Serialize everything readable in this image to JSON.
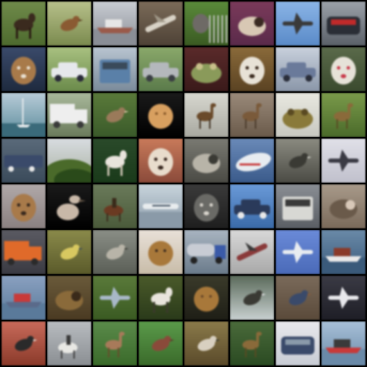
{
  "grid": {
    "rows": 8,
    "cols": 8,
    "tiles": [
      {
        "subject": "horse",
        "bg": [
          "#6f8a4a",
          "#4d6a2e"
        ],
        "fg": "#3a2a1e",
        "accent": "#2a1a12",
        "shape": "quadruped"
      },
      {
        "subject": "bird",
        "bg": [
          "#b7c08a",
          "#7a8a4e"
        ],
        "fg": "#8a5a32",
        "accent": "#5a3a1e",
        "shape": "bird"
      },
      {
        "subject": "ship",
        "bg": [
          "#c8ccd2",
          "#8a8e96"
        ],
        "fg": "#9a5a4a",
        "accent": "#e6e6e6",
        "shape": "ship"
      },
      {
        "subject": "airplane",
        "bg": [
          "#7a6a58",
          "#4e4236"
        ],
        "fg": "#d8d2c6",
        "accent": "#a09888",
        "shape": "plane-diag"
      },
      {
        "subject": "cat",
        "bg": [
          "#5a8a3a",
          "#3a5a22"
        ],
        "fg": "#6e6a66",
        "accent": "#c8c8c8",
        "shape": "animal-fence"
      },
      {
        "subject": "cat",
        "bg": [
          "#7a3a5a",
          "#5a2a4a"
        ],
        "fg": "#d8c8b4",
        "accent": "#3a2a22",
        "shape": "curled"
      },
      {
        "subject": "airplane",
        "bg": [
          "#8ab4e6",
          "#5a8ac8"
        ],
        "fg": "#3a3a3a",
        "accent": "#e6e6e6",
        "shape": "plane"
      },
      {
        "subject": "automobile",
        "bg": [
          "#9aa0a8",
          "#5a6068"
        ],
        "fg": "#2a2e36",
        "accent": "#c02a2a",
        "shape": "car-front"
      },
      {
        "subject": "dog",
        "bg": [
          "#3a4a6a",
          "#1e2a3e"
        ],
        "fg": "#a87a4a",
        "accent": "#e8e0d2",
        "shape": "head"
      },
      {
        "subject": "automobile",
        "bg": [
          "#a8c080",
          "#6a8a4a"
        ],
        "fg": "#e6e8ec",
        "accent": "#2a2a3a",
        "shape": "car-side"
      },
      {
        "subject": "truck",
        "bg": [
          "#b8c4d0",
          "#7a8a9a"
        ],
        "fg": "#5a80a8",
        "accent": "#3a4a5a",
        "shape": "truck-front"
      },
      {
        "subject": "automobile",
        "bg": [
          "#8aa86a",
          "#5a7a4a"
        ],
        "fg": "#b4b8bc",
        "accent": "#3a3e44",
        "shape": "car-side"
      },
      {
        "subject": "frog",
        "bg": [
          "#5a2a2a",
          "#3a1a1a"
        ],
        "fg": "#8a9a5a",
        "accent": "#c8c08a",
        "shape": "frog"
      },
      {
        "subject": "dog",
        "bg": [
          "#8a6a3a",
          "#5a4222"
        ],
        "fg": "#e8e2d6",
        "accent": "#3a2a1e",
        "shape": "head"
      },
      {
        "subject": "automobile",
        "bg": [
          "#c8d0dc",
          "#8a96a8"
        ],
        "fg": "#6a7a9a",
        "accent": "#2a2e3a",
        "shape": "car-side"
      },
      {
        "subject": "cat",
        "bg": [
          "#5a6a4a",
          "#3a4a2e"
        ],
        "fg": "#e6e2d8",
        "accent": "#c83a4a",
        "shape": "head"
      },
      {
        "subject": "ship",
        "bg": [
          "#b8ccd8",
          "#5a8a9a"
        ],
        "fg": "#e8ecee",
        "accent": "#3a6a7a",
        "shape": "sailboat"
      },
      {
        "subject": "truck",
        "bg": [
          "#a8b89a",
          "#6a7a5a"
        ],
        "fg": "#eeeeee",
        "accent": "#3a3a3a",
        "shape": "truck-side"
      },
      {
        "subject": "bird",
        "bg": [
          "#5a7a3a",
          "#3a5a2a"
        ],
        "fg": "#9a7a5a",
        "accent": "#d8c8a8",
        "shape": "bird"
      },
      {
        "subject": "dog",
        "bg": [
          "#1a1a1a",
          "#000000"
        ],
        "fg": "#d8a060",
        "accent": "#8a5a2a",
        "shape": "fluffy"
      },
      {
        "subject": "deer",
        "bg": [
          "#d8d8d0",
          "#a8a8a0"
        ],
        "fg": "#6a4a2a",
        "accent": "#3a2a1a",
        "shape": "deer"
      },
      {
        "subject": "deer",
        "bg": [
          "#9a8a7a",
          "#6a5a4a"
        ],
        "fg": "#7a5a3a",
        "accent": "#4a3a2a",
        "shape": "deer"
      },
      {
        "subject": "frog",
        "bg": [
          "#e8e8e0",
          "#c8c8c0"
        ],
        "fg": "#8a7a3a",
        "accent": "#5a4a22",
        "shape": "frog"
      },
      {
        "subject": "deer",
        "bg": [
          "#7a9a4a",
          "#4a6a2a"
        ],
        "fg": "#8a6a3a",
        "accent": "#5a4a22",
        "shape": "deer"
      },
      {
        "subject": "truck",
        "bg": [
          "#5a6a7a",
          "#3a4a5a"
        ],
        "fg": "#3a4a6a",
        "accent": "#e8e8e8",
        "shape": "train"
      },
      {
        "subject": "frog",
        "bg": [
          "#d8dce0",
          "#a8b0a0"
        ],
        "fg": "#4a6a2a",
        "accent": "#2a4a1a",
        "shape": "hill"
      },
      {
        "subject": "dog",
        "bg": [
          "#2a4a2a",
          "#1a3a1a"
        ],
        "fg": "#e8e4dc",
        "accent": "#c8c0b0",
        "shape": "quadruped"
      },
      {
        "subject": "dog",
        "bg": [
          "#c87a5a",
          "#8a4a3a"
        ],
        "fg": "#e8dccc",
        "accent": "#3a2a22",
        "shape": "head"
      },
      {
        "subject": "cat",
        "bg": [
          "#7a7a72",
          "#4a4a44"
        ],
        "fg": "#b8b4a8",
        "accent": "#3a3a34",
        "shape": "curled"
      },
      {
        "subject": "airplane",
        "bg": [
          "#6a8ab8",
          "#3a5a8a"
        ],
        "fg": "#e8ecf0",
        "accent": "#c83a3a",
        "shape": "plane-close"
      },
      {
        "subject": "bird",
        "bg": [
          "#8a8a80",
          "#4a4a44"
        ],
        "fg": "#3a3a34",
        "accent": "#d8d8d0",
        "shape": "bird"
      },
      {
        "subject": "airplane",
        "bg": [
          "#e0e0e8",
          "#c0c0cc"
        ],
        "fg": "#3a3a44",
        "accent": "#6a6a74",
        "shape": "plane"
      },
      {
        "subject": "dog",
        "bg": [
          "#b0a8a8",
          "#8a8080"
        ],
        "fg": "#a87a4a",
        "accent": "#3a2a1e",
        "shape": "head"
      },
      {
        "subject": "bird",
        "bg": [
          "#1a1a1a",
          "#000000"
        ],
        "fg": "#c8b8a8",
        "accent": "#6a5a4a",
        "shape": "ostrich"
      },
      {
        "subject": "horse",
        "bg": [
          "#6a7a5a",
          "#4a5a3a"
        ],
        "fg": "#6a3a22",
        "accent": "#3a2a1a",
        "shape": "rider"
      },
      {
        "subject": "airplane",
        "bg": [
          "#c8d4dc",
          "#8a9aa8"
        ],
        "fg": "#e8ecee",
        "accent": "#3a4a5a",
        "shape": "plane-side"
      },
      {
        "subject": "cat",
        "bg": [
          "#3a3a3a",
          "#1e1e1e"
        ],
        "fg": "#6a6a66",
        "accent": "#d8d4cc",
        "shape": "head"
      },
      {
        "subject": "automobile",
        "bg": [
          "#6a9ad8",
          "#3a6aa8"
        ],
        "fg": "#2a3a5a",
        "accent": "#e8e8e8",
        "shape": "car-side"
      },
      {
        "subject": "truck",
        "bg": [
          "#8a8e94",
          "#5a5e64"
        ],
        "fg": "#d8d8d4",
        "accent": "#3a3a3a",
        "shape": "truck-front"
      },
      {
        "subject": "cat",
        "bg": [
          "#a89a8a",
          "#7a6a5a"
        ],
        "fg": "#6a5a4a",
        "accent": "#d8c8b8",
        "shape": "curled"
      },
      {
        "subject": "truck",
        "bg": [
          "#5a5a62",
          "#3a3a42"
        ],
        "fg": "#e06a2a",
        "accent": "#2a2a2a",
        "shape": "truck-side"
      },
      {
        "subject": "bird",
        "bg": [
          "#8a8a4a",
          "#5a5a2a"
        ],
        "fg": "#d8c860",
        "accent": "#3a4a5a",
        "shape": "bird"
      },
      {
        "subject": "bird",
        "bg": [
          "#8a8e86",
          "#5a5e56"
        ],
        "fg": "#b8b4a8",
        "accent": "#3a3a34",
        "shape": "bird"
      },
      {
        "subject": "dog",
        "bg": [
          "#e8e0d8",
          "#c8bca8"
        ],
        "fg": "#a8783a",
        "accent": "#3a2a1e",
        "shape": "fluffy"
      },
      {
        "subject": "truck",
        "bg": [
          "#a8b4c0",
          "#6a7a8a"
        ],
        "fg": "#3a5aa8",
        "accent": "#c8ccd4",
        "shape": "tanker"
      },
      {
        "subject": "airplane",
        "bg": [
          "#d8d8d8",
          "#a8a8a8"
        ],
        "fg": "#8a3a3a",
        "accent": "#3a3a3a",
        "shape": "plane-diag"
      },
      {
        "subject": "airplane",
        "bg": [
          "#6a8ad8",
          "#4a6ab8"
        ],
        "fg": "#e8ecf0",
        "accent": "#3a3a3a",
        "shape": "plane"
      },
      {
        "subject": "ship",
        "bg": [
          "#6a8aa8",
          "#3a5a7a"
        ],
        "fg": "#e8e8e8",
        "accent": "#8a3a2a",
        "shape": "ship"
      },
      {
        "subject": "ship",
        "bg": [
          "#8aa0c0",
          "#5a7a9a"
        ],
        "fg": "#5a6a8a",
        "accent": "#c83a3a",
        "shape": "ship"
      },
      {
        "subject": "cat",
        "bg": [
          "#6a5a3a",
          "#4a3a22"
        ],
        "fg": "#8a6a3a",
        "accent": "#3a2a1a",
        "shape": "curled"
      },
      {
        "subject": "airplane",
        "bg": [
          "#5a7a3a",
          "#3a5a22"
        ],
        "fg": "#a8b8c8",
        "accent": "#6a7a8a",
        "shape": "plane"
      },
      {
        "subject": "horse",
        "bg": [
          "#4a5a2a",
          "#2a3a1a"
        ],
        "fg": "#e8e4dc",
        "accent": "#3a3a2a",
        "shape": "quadruped"
      },
      {
        "subject": "cat",
        "bg": [
          "#3a3a2a",
          "#1e1e16"
        ],
        "fg": "#a8783a",
        "accent": "#6a4a2a",
        "shape": "fluffy"
      },
      {
        "subject": "bird",
        "bg": [
          "#5a6a5a",
          "#c8d0d0"
        ],
        "fg": "#3a3a34",
        "accent": "#e8e8e8",
        "shape": "bird"
      },
      {
        "subject": "bird",
        "bg": [
          "#7a6a5a",
          "#5a4a3a"
        ],
        "fg": "#3a4a6a",
        "accent": "#8a5a3a",
        "shape": "bird"
      },
      {
        "subject": "airplane",
        "bg": [
          "#3a3a44",
          "#1e1e26"
        ],
        "fg": "#e8e8ec",
        "accent": "#8a8a94",
        "shape": "plane"
      },
      {
        "subject": "bird",
        "bg": [
          "#c86a5a",
          "#8a3a2a"
        ],
        "fg": "#2a2a2a",
        "accent": "#e8e0d8",
        "shape": "bird"
      },
      {
        "subject": "horse",
        "bg": [
          "#b8bcc0",
          "#8a8e92"
        ],
        "fg": "#e8e8e4",
        "accent": "#3a3a3a",
        "shape": "rider"
      },
      {
        "subject": "deer",
        "bg": [
          "#5a8a4a",
          "#3a6a2a"
        ],
        "fg": "#a87a5a",
        "accent": "#6a4a2a",
        "shape": "deer"
      },
      {
        "subject": "bird",
        "bg": [
          "#5a9a4a",
          "#3a6a2a"
        ],
        "fg": "#8a4a3a",
        "accent": "#5a3a2a",
        "shape": "bird"
      },
      {
        "subject": "bird",
        "bg": [
          "#8a7a4a",
          "#5a4a2a"
        ],
        "fg": "#d8d0c0",
        "accent": "#3a3a2a",
        "shape": "bird"
      },
      {
        "subject": "deer",
        "bg": [
          "#4a6a3a",
          "#2a4a22"
        ],
        "fg": "#8a6a3a",
        "accent": "#5a4a22",
        "shape": "deer"
      },
      {
        "subject": "automobile",
        "bg": [
          "#e8e8ec",
          "#c8ccd4"
        ],
        "fg": "#3a4a6a",
        "accent": "#8a9aaa",
        "shape": "car-front"
      },
      {
        "subject": "ship",
        "bg": [
          "#a8c0d8",
          "#6a8aa8"
        ],
        "fg": "#c83a3a",
        "accent": "#3a3a3a",
        "shape": "ship"
      }
    ]
  }
}
